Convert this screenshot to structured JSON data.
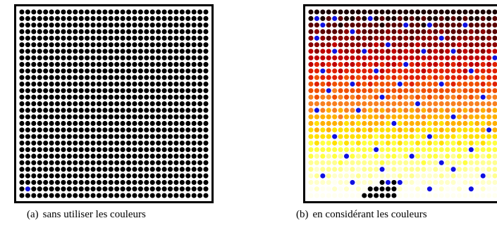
{
  "figure": {
    "panels": [
      {
        "id": "a",
        "caption_label": "(a)",
        "caption_text": "sans utiliser les couleurs",
        "grid": {
          "rows": 29,
          "cols": 32
        },
        "dot_color": "#000000",
        "highlight_color": "#1010e0",
        "highlight_positions": [
          [
            27,
            1
          ]
        ]
      },
      {
        "id": "b",
        "caption_label": "(b)",
        "caption_text": "en considérant les couleurs",
        "grid": {
          "rows": 29,
          "cols": 32
        },
        "gradient_colors": [
          "#1a0000",
          "#5a0000",
          "#8b0000",
          "#c00000",
          "#e02000",
          "#f05000",
          "#f88020",
          "#ffb000",
          "#ffe000",
          "#ffff40",
          "#ffff90",
          "#ffffc8",
          "#fffff0"
        ],
        "highlight_color": "#1010e0",
        "black_color": "#000000",
        "highlight_positions": [
          [
            1,
            1
          ],
          [
            1,
            4
          ],
          [
            1,
            10
          ],
          [
            2,
            2
          ],
          [
            2,
            16
          ],
          [
            2,
            20
          ],
          [
            2,
            26
          ],
          [
            3,
            7
          ],
          [
            4,
            1
          ],
          [
            4,
            22
          ],
          [
            5,
            13
          ],
          [
            6,
            4
          ],
          [
            6,
            9
          ],
          [
            6,
            19
          ],
          [
            6,
            24
          ],
          [
            7,
            31
          ],
          [
            8,
            16
          ],
          [
            9,
            2
          ],
          [
            9,
            11
          ],
          [
            9,
            27
          ],
          [
            11,
            7
          ],
          [
            11,
            15
          ],
          [
            11,
            22
          ],
          [
            12,
            3
          ],
          [
            13,
            12
          ],
          [
            13,
            29
          ],
          [
            14,
            18
          ],
          [
            15,
            1
          ],
          [
            15,
            8
          ],
          [
            16,
            24
          ],
          [
            17,
            14
          ],
          [
            18,
            30
          ],
          [
            19,
            4
          ],
          [
            19,
            20
          ],
          [
            21,
            11
          ],
          [
            21,
            27
          ],
          [
            22,
            6
          ],
          [
            22,
            17
          ],
          [
            23,
            22
          ],
          [
            24,
            12
          ],
          [
            24,
            24
          ],
          [
            25,
            2
          ],
          [
            25,
            29
          ],
          [
            26,
            7
          ],
          [
            26,
            13
          ],
          [
            26,
            15
          ],
          [
            27,
            20
          ],
          [
            27,
            27
          ]
        ],
        "black_positions": [
          [
            26,
            12
          ],
          [
            26,
            14
          ],
          [
            27,
            10
          ],
          [
            27,
            11
          ],
          [
            27,
            12
          ],
          [
            27,
            13
          ],
          [
            27,
            14
          ],
          [
            28,
            9
          ],
          [
            28,
            10
          ],
          [
            28,
            11
          ],
          [
            28,
            12
          ],
          [
            28,
            13
          ],
          [
            28,
            14
          ]
        ]
      }
    ]
  }
}
